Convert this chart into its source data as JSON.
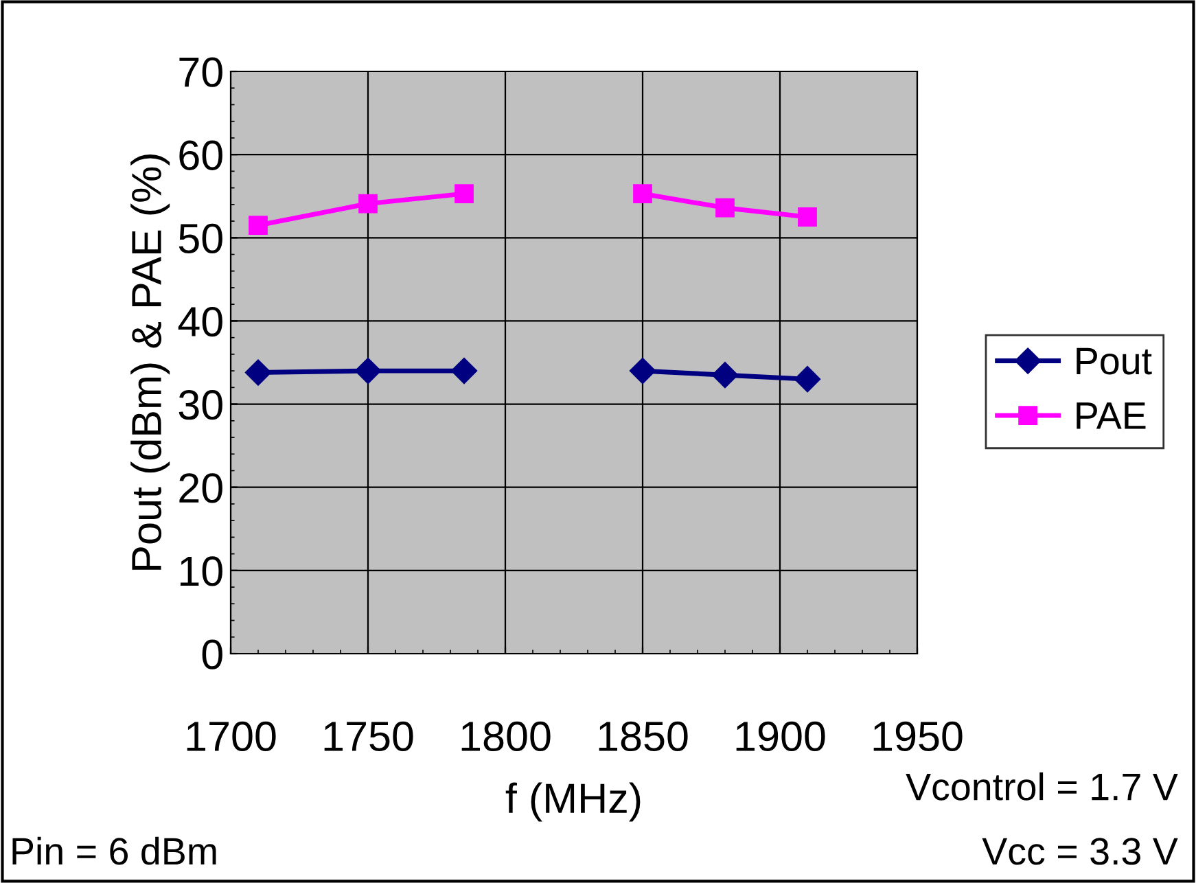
{
  "chart_data": {
    "type": "line",
    "xlabel": "f (MHz)",
    "ylabel": "Pout (dBm) & PAE (%)",
    "x": [
      1710,
      1750,
      1785,
      1800,
      1850,
      1880,
      1910
    ],
    "series": [
      {
        "name": "Pout",
        "color": "#000080",
        "values": [
          33.8,
          34.0,
          34.0,
          null,
          34.0,
          33.5,
          33.0
        ],
        "marker": "diamond"
      },
      {
        "name": "PAE",
        "color": "#ff00ff",
        "values": [
          51.5,
          54.1,
          55.3,
          null,
          55.3,
          53.6,
          52.5
        ],
        "marker": "square"
      }
    ],
    "xlim": [
      1700,
      1950
    ],
    "xticks": [
      1700,
      1750,
      1800,
      1850,
      1900,
      1950
    ],
    "ylim": [
      0,
      70
    ],
    "yticks": [
      0,
      10,
      20,
      30,
      40,
      50,
      60,
      70
    ],
    "grid": true,
    "legend": "right",
    "line_style": "solid",
    "annotations": [
      "Vcontrol = 1.7 V",
      "Vcc = 3.3 V",
      "Pin = 6 dBm"
    ]
  }
}
